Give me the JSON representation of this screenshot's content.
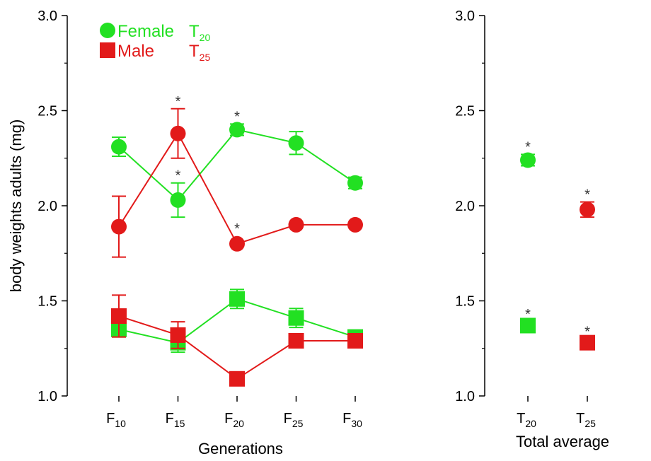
{
  "colors": {
    "female": "#22e022",
    "male": "#e21a1a",
    "axis": "#000000",
    "star": "#333333"
  },
  "chart_data": [
    {
      "type": "line",
      "ylabel": "body weights  adults (mg)",
      "xlabel": "Generations",
      "ylim": [
        1.0,
        3.0
      ],
      "yticks": [
        "1.0",
        "1.5",
        "2.0",
        "2.5",
        "3.0"
      ],
      "categories": [
        {
          "base": "F",
          "sub": "10"
        },
        {
          "base": "F",
          "sub": "15"
        },
        {
          "base": "F",
          "sub": "20"
        },
        {
          "base": "F",
          "sub": "25"
        },
        {
          "base": "F",
          "sub": "30"
        }
      ],
      "legend": [
        {
          "marker": "circle",
          "label": "Female",
          "temp": "T",
          "temp_sub": "20",
          "color": "#22e022"
        },
        {
          "marker": "square",
          "label": "Male",
          "temp": "T",
          "temp_sub": "25",
          "color": "#e21a1a"
        }
      ],
      "series": [
        {
          "key": "female_circle",
          "marker": "circle",
          "color": "#22e022",
          "values": [
            2.31,
            2.03,
            2.4,
            2.33,
            2.12
          ],
          "errors": [
            0.05,
            0.09,
            0.03,
            0.06,
            0.03
          ],
          "stars": [
            false,
            true,
            true,
            false,
            false
          ]
        },
        {
          "key": "male_circle",
          "marker": "circle",
          "color": "#e21a1a",
          "values": [
            1.89,
            2.38,
            1.8,
            1.9,
            1.9
          ],
          "errors": [
            0.16,
            0.13,
            0.0,
            0.0,
            0.0
          ],
          "stars": [
            false,
            true,
            true,
            false,
            false
          ]
        },
        {
          "key": "female_square",
          "marker": "square",
          "color": "#22e022",
          "values": [
            1.35,
            1.28,
            1.51,
            1.41,
            1.31
          ],
          "errors": [
            0.04,
            0.05,
            0.05,
            0.05,
            0.03
          ],
          "stars": [
            false,
            false,
            false,
            false,
            false
          ]
        },
        {
          "key": "male_square",
          "marker": "square",
          "color": "#e21a1a",
          "values": [
            1.42,
            1.32,
            1.09,
            1.29,
            1.29
          ],
          "errors": [
            0.11,
            0.07,
            0.0,
            0.0,
            0.0
          ],
          "stars": [
            false,
            false,
            false,
            false,
            false
          ]
        }
      ]
    },
    {
      "type": "scatter",
      "xlabel": "Total average",
      "ylim": [
        1.0,
        3.0
      ],
      "yticks": [
        "1.0",
        "1.5",
        "2.0",
        "2.5",
        "3.0"
      ],
      "categories": [
        {
          "base": "T",
          "sub": "20"
        },
        {
          "base": "T",
          "sub": "25"
        }
      ],
      "points": [
        {
          "key": "avg_female_circle",
          "category": 0,
          "marker": "circle",
          "color": "#22e022",
          "value": 2.24,
          "error": 0.03,
          "star": true
        },
        {
          "key": "avg_male_circle",
          "category": 1,
          "marker": "circle",
          "color": "#e21a1a",
          "value": 1.98,
          "error": 0.04,
          "star": true
        },
        {
          "key": "avg_female_square",
          "category": 0,
          "marker": "square",
          "color": "#22e022",
          "value": 1.37,
          "error": 0.02,
          "star": true
        },
        {
          "key": "avg_male_square",
          "category": 1,
          "marker": "square",
          "color": "#e21a1a",
          "value": 1.28,
          "error": 0.02,
          "star": true
        }
      ]
    }
  ],
  "star_symbol": "*"
}
